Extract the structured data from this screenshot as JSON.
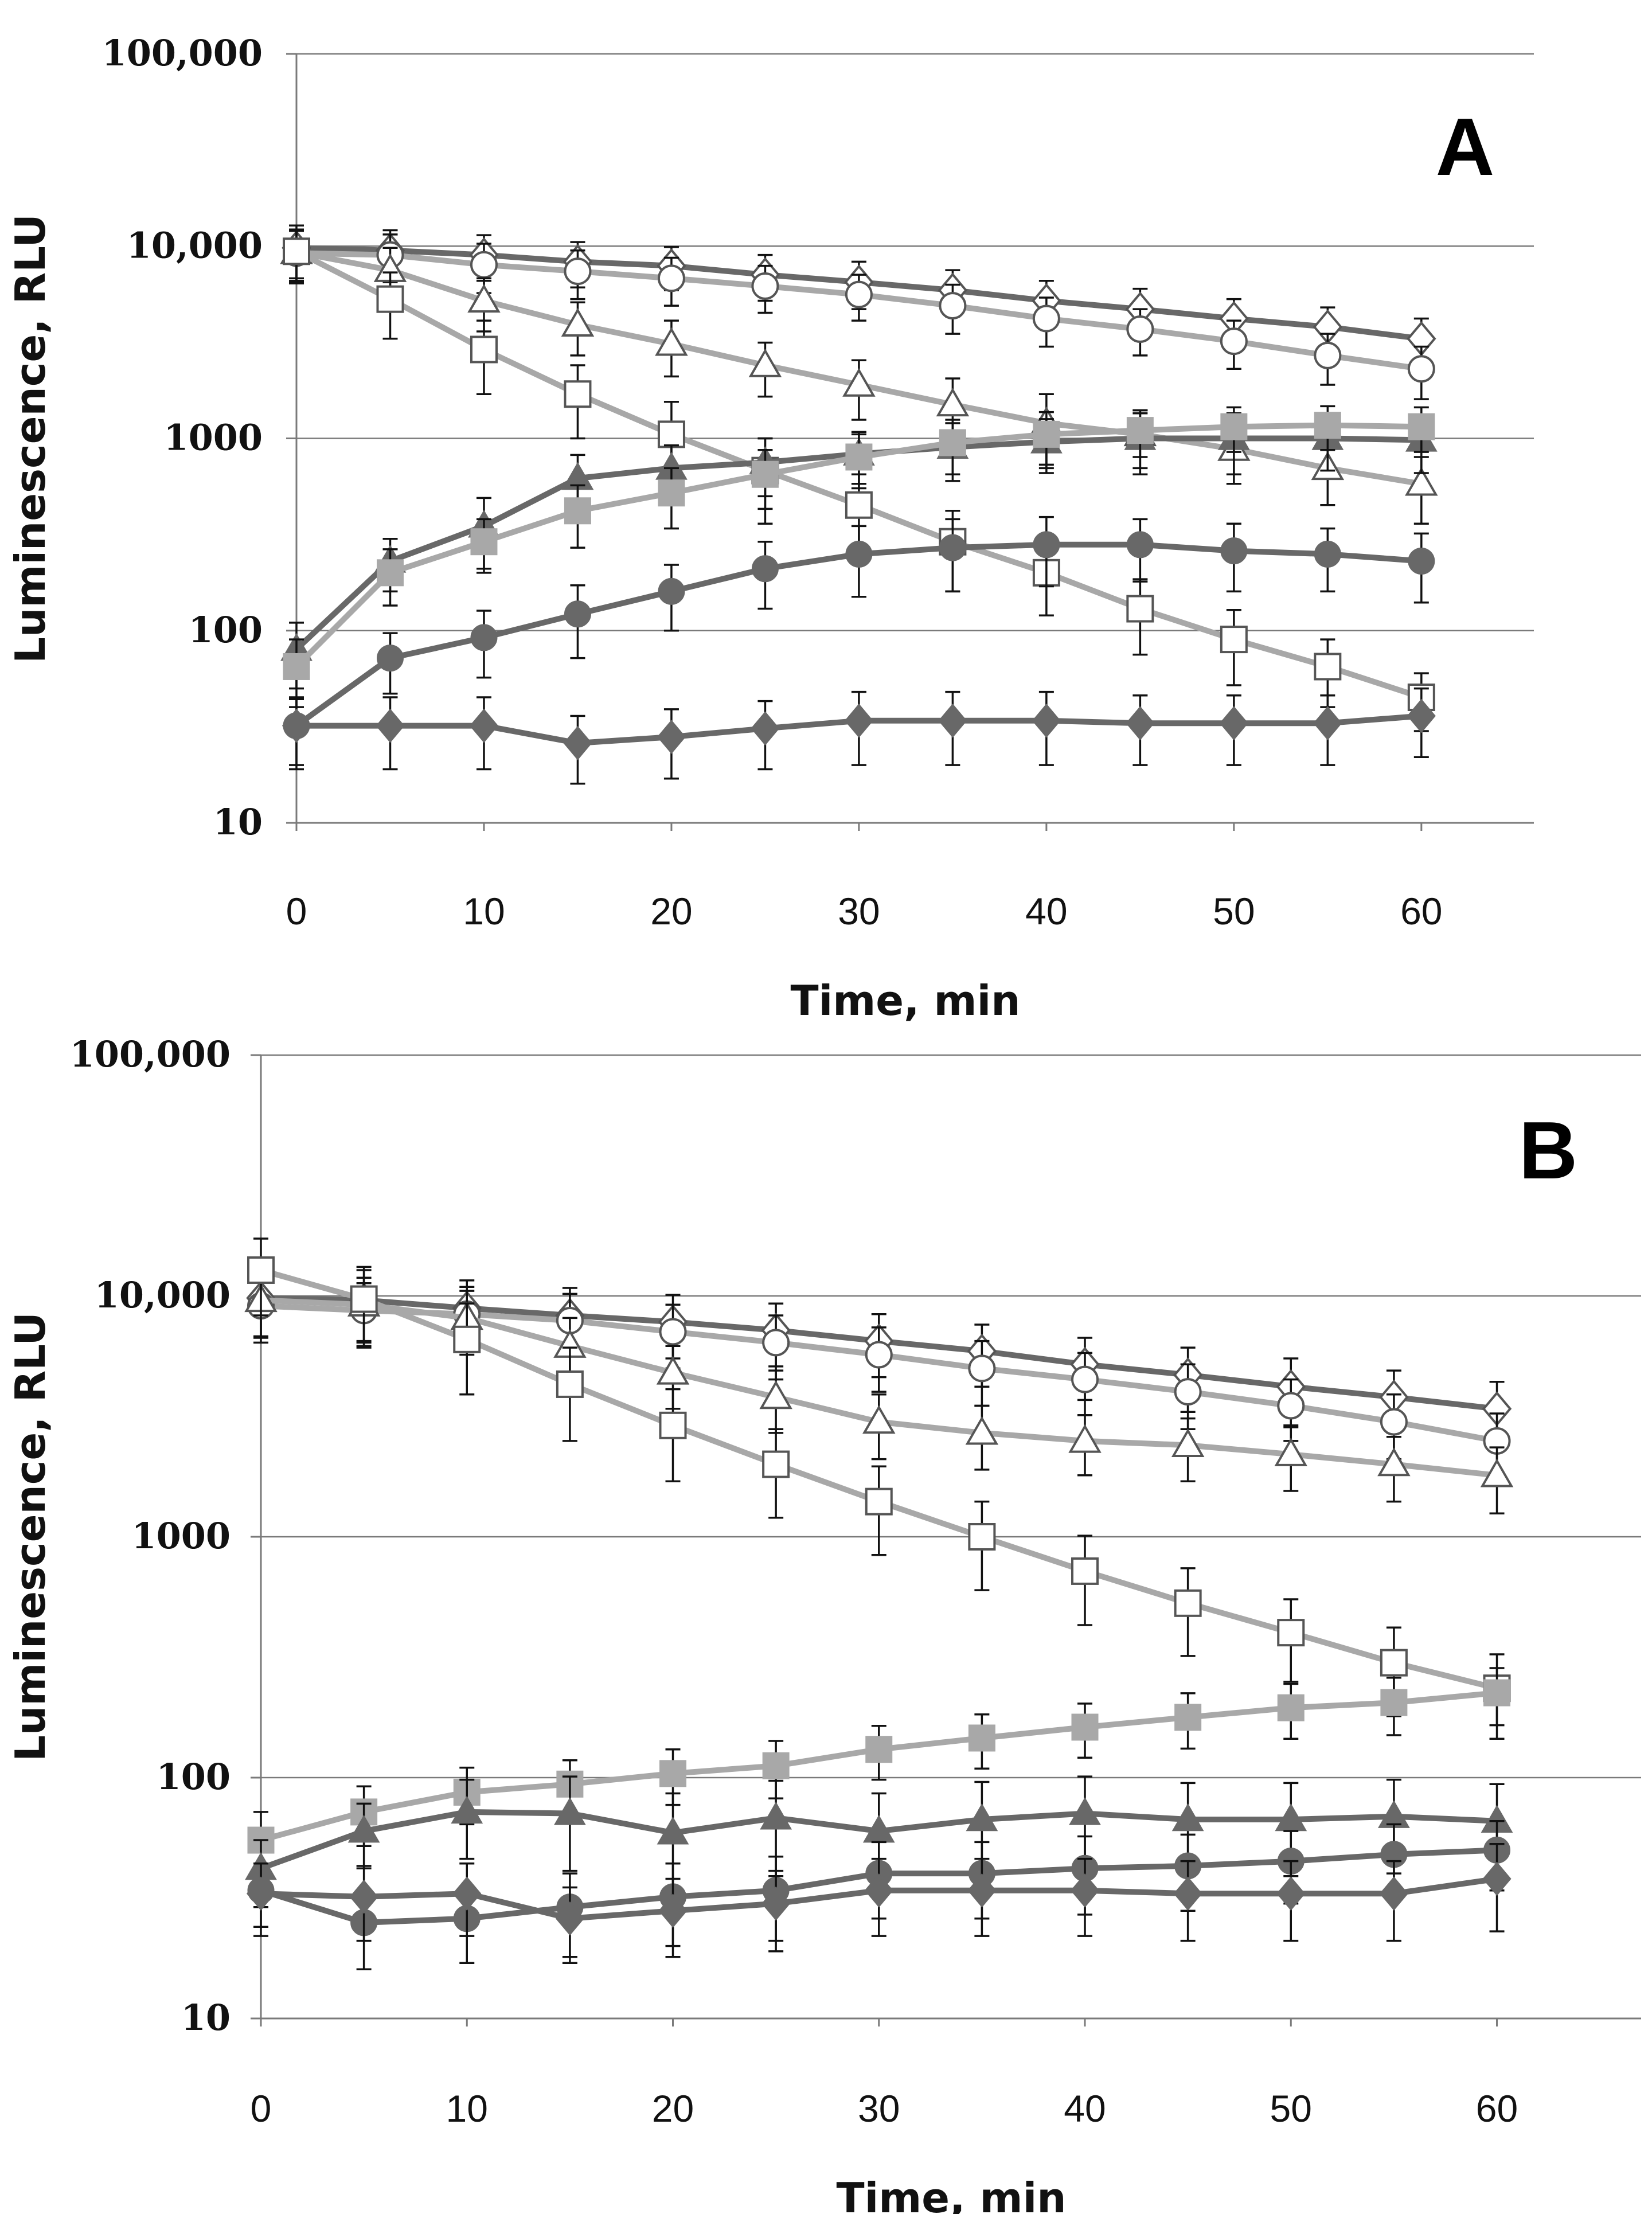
{
  "colors": {
    "dark_series": "#686868",
    "light_series": "#a8a8a8",
    "open_fill": "#ffffff",
    "gridline": "#7a7a7a",
    "error_bar": "#111111"
  },
  "chart_data": [
    {
      "panel": "A",
      "type": "line",
      "xlabel": "Time, min",
      "ylabel": "Luminescence, RLU",
      "yscale": "log",
      "ylim": [
        10,
        100000
      ],
      "xlim": [
        0,
        66
      ],
      "x_ticks": [
        "0",
        "10",
        "20",
        "30",
        "40",
        "50",
        "60"
      ],
      "y_ticks": [
        "10",
        "100",
        "1000",
        "10,000",
        "100,000"
      ],
      "grid": "horizontal",
      "legend": "none",
      "x": [
        0,
        5,
        10,
        15,
        20,
        25,
        30,
        35,
        40,
        45,
        50,
        55,
        60
      ],
      "series": [
        {
          "marker": "diamond-open",
          "color": "#686868",
          "values": [
            9800,
            9500,
            9000,
            8300,
            7900,
            7100,
            6500,
            5900,
            5200,
            4700,
            4200,
            3800,
            3300
          ],
          "err": [
            3000,
            2600,
            2400,
            2200,
            2000,
            1900,
            1800,
            1600,
            1400,
            1300,
            1100,
            1000,
            900
          ]
        },
        {
          "marker": "circle-open",
          "color": "#a8a8a8",
          "values": [
            9200,
            9000,
            8000,
            7400,
            6800,
            6200,
            5600,
            4900,
            4200,
            3700,
            3200,
            2700,
            2300
          ],
          "err": [
            2800,
            2500,
            2300,
            2100,
            1900,
            1700,
            1500,
            1400,
            1200,
            1000,
            900,
            800,
            700
          ]
        },
        {
          "marker": "triangle-open",
          "color": "#a8a8a8",
          "values": [
            9300,
            7500,
            5200,
            3900,
            3100,
            2400,
            1900,
            1500,
            1200,
            1050,
            880,
            700,
            580
          ],
          "err": [
            2800,
            2300,
            1600,
            1200,
            1000,
            750,
            650,
            550,
            500,
            350,
            300,
            250,
            220
          ]
        },
        {
          "marker": "square-open",
          "color": "#a8a8a8",
          "values": [
            9400,
            5300,
            2900,
            1700,
            1050,
            680,
            450,
            290,
            200,
            130,
            90,
            65,
            45
          ],
          "err": [
            2800,
            2000,
            1200,
            700,
            500,
            320,
            200,
            130,
            80,
            55,
            38,
            25,
            15
          ]
        },
        {
          "marker": "triangle-filled",
          "color": "#686868",
          "values": [
            80,
            230,
            350,
            620,
            700,
            750,
            830,
            900,
            960,
            1000,
            1000,
            1000,
            980
          ],
          "err": [
            30,
            70,
            140,
            200,
            220,
            250,
            250,
            300,
            300,
            350,
            350,
            320,
            320
          ]
        },
        {
          "marker": "square-filled",
          "color": "#a8a8a8",
          "values": [
            65,
            200,
            290,
            420,
            520,
            650,
            800,
            950,
            1050,
            1100,
            1150,
            1170,
            1150
          ],
          "err": [
            25,
            65,
            90,
            150,
            180,
            220,
            250,
            300,
            320,
            300,
            300,
            300,
            300
          ]
        },
        {
          "marker": "circle-filled",
          "color": "#686868",
          "values": [
            32,
            72,
            92,
            122,
            160,
            210,
            250,
            270,
            280,
            280,
            260,
            250,
            230
          ],
          "err": [
            12,
            25,
            35,
            50,
            60,
            80,
            100,
            110,
            110,
            100,
            100,
            90,
            90
          ]
        },
        {
          "marker": "diamond-filled",
          "color": "#686868",
          "values": [
            32,
            32,
            32,
            26,
            28,
            31,
            34,
            34,
            34,
            33,
            33,
            33,
            36
          ],
          "err": [
            13,
            13,
            13,
            10,
            11,
            12,
            14,
            14,
            14,
            13,
            13,
            13,
            14
          ]
        }
      ]
    },
    {
      "panel": "B",
      "type": "line",
      "xlabel": "Time, min",
      "ylabel": "Luminescence, RLU",
      "yscale": "log",
      "ylim": [
        10,
        100000
      ],
      "xlim": [
        0,
        67
      ],
      "x_ticks": [
        "0",
        "10",
        "20",
        "30",
        "40",
        "50",
        "60"
      ],
      "y_ticks": [
        "10",
        "100",
        "1000",
        "10,000",
        "100,000"
      ],
      "grid": "horizontal",
      "legend": "none",
      "x": [
        0,
        5,
        10,
        15,
        20,
        25,
        30,
        35,
        40,
        45,
        50,
        55,
        60
      ],
      "series": [
        {
          "marker": "diamond-open",
          "color": "#686868",
          "values": [
            9800,
            9600,
            8900,
            8300,
            7800,
            7200,
            6500,
            5900,
            5200,
            4700,
            4200,
            3800,
            3400
          ],
          "err": [
            3000,
            3200,
            2700,
            2500,
            2300,
            2100,
            1900,
            1700,
            1500,
            1400,
            1300,
            1100,
            1000
          ]
        },
        {
          "marker": "circle-open",
          "color": "#a8a8a8",
          "values": [
            9100,
            8700,
            8400,
            7900,
            7100,
            6400,
            5700,
            5000,
            4500,
            4000,
            3500,
            3000,
            2500
          ],
          "err": [
            2700,
            2600,
            2500,
            2300,
            2100,
            1900,
            1700,
            1500,
            1300,
            1200,
            1000,
            900,
            750
          ]
        },
        {
          "marker": "triangle-open",
          "color": "#a8a8a8",
          "values": [
            9600,
            9200,
            8100,
            6200,
            4800,
            3800,
            3000,
            2700,
            2500,
            2400,
            2200,
            2000,
            1800
          ],
          "err": [
            2900,
            2700,
            2400,
            1900,
            1400,
            1100,
            900,
            800,
            700,
            700,
            650,
            600,
            550
          ]
        },
        {
          "marker": "square-open",
          "color": "#a8a8a8",
          "values": [
            12800,
            9700,
            6600,
            4300,
            2900,
            2000,
            1400,
            1000,
            720,
            530,
            400,
            300,
            235
          ],
          "err": [
            4500,
            3500,
            2700,
            1800,
            1200,
            800,
            560,
            400,
            290,
            210,
            150,
            120,
            90
          ]
        },
        {
          "marker": "square-filled",
          "color": "#a8a8a8",
          "values": [
            55,
            72,
            87,
            94,
            104,
            112,
            131,
            146,
            162,
            178,
            195,
            205,
            225
          ],
          "err": [
            17,
            20,
            23,
            24,
            27,
            30,
            33,
            37,
            41,
            46,
            50,
            55,
            60
          ]
        },
        {
          "marker": "triangle-filled",
          "color": "#686868",
          "values": [
            42,
            60,
            72,
            71,
            59,
            68,
            60,
            67,
            71,
            67,
            67,
            69,
            66
          ],
          "err": [
            13,
            18,
            26,
            30,
            27,
            29,
            26,
            29,
            30,
            28,
            28,
            29,
            28
          ]
        },
        {
          "marker": "circle-filled",
          "color": "#686868",
          "values": [
            34,
            25,
            26,
            29,
            32,
            34,
            40,
            40,
            42,
            43,
            45,
            48,
            50
          ],
          "err": [
            10,
            9,
            9,
            11,
            12,
            13,
            14,
            14,
            15,
            15,
            15,
            16,
            16
          ]
        },
        {
          "marker": "diamond-filled",
          "color": "#686868",
          "values": [
            33,
            32,
            33,
            26,
            28,
            30,
            34,
            34,
            34,
            33,
            33,
            33,
            38
          ],
          "err": [
            11,
            11,
            11,
            9,
            10,
            11,
            12,
            12,
            12,
            12,
            12,
            12,
            15
          ]
        }
      ]
    }
  ]
}
